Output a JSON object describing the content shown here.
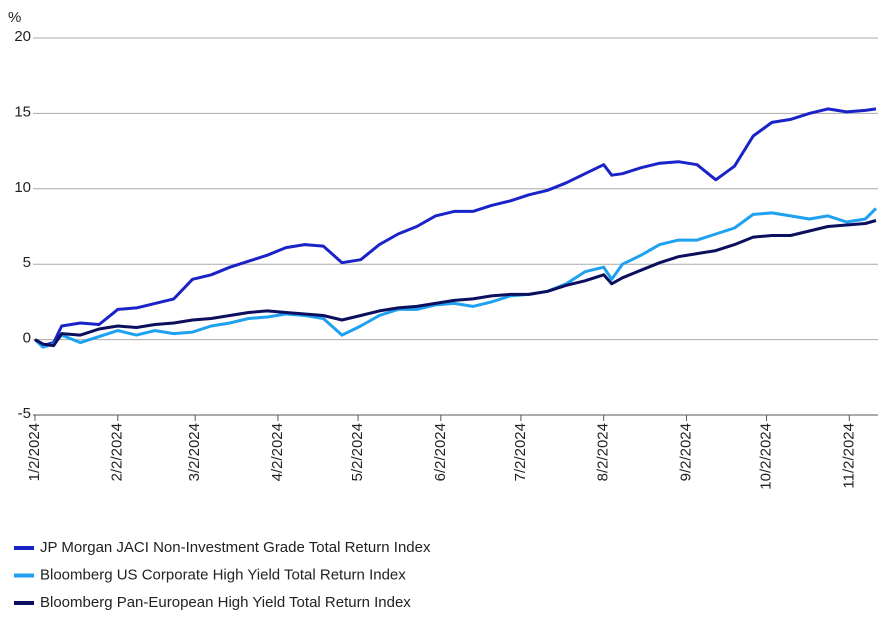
{
  "chart_data": {
    "type": "line",
    "y_label": "%",
    "x": [
      "1/2/2024",
      "1/5/2024",
      "1/9/2024",
      "1/12/2024",
      "1/19/2024",
      "1/26/2024",
      "2/2/2024",
      "2/9/2024",
      "2/16/2024",
      "2/23/2024",
      "3/1/2024",
      "3/8/2024",
      "3/15/2024",
      "3/22/2024",
      "3/29/2024",
      "4/5/2024",
      "4/12/2024",
      "4/19/2024",
      "4/26/2024",
      "5/3/2024",
      "5/10/2024",
      "5/17/2024",
      "5/24/2024",
      "5/31/2024",
      "6/7/2024",
      "6/14/2024",
      "6/21/2024",
      "6/28/2024",
      "7/5/2024",
      "7/12/2024",
      "7/19/2024",
      "7/26/2024",
      "8/2/2024",
      "8/5/2024",
      "8/9/2024",
      "8/16/2024",
      "8/23/2024",
      "8/30/2024",
      "9/6/2024",
      "9/13/2024",
      "9/20/2024",
      "9/27/2024",
      "10/4/2024",
      "10/11/2024",
      "10/18/2024",
      "10/25/2024",
      "11/1/2024",
      "11/8/2024",
      "11/12/2024"
    ],
    "series": [
      {
        "name": "JP Morgan JACI Non-Investment Grade Total Return Index",
        "color": "#1a23c8",
        "values": [
          0,
          -0.4,
          -0.2,
          0.9,
          1.1,
          1.0,
          2.0,
          2.1,
          2.4,
          2.7,
          4.0,
          4.3,
          4.8,
          5.2,
          5.6,
          6.1,
          6.3,
          6.2,
          5.1,
          5.3,
          6.3,
          7.0,
          7.5,
          8.2,
          8.5,
          8.5,
          8.9,
          9.2,
          9.6,
          9.9,
          10.4,
          11.0,
          11.6,
          10.9,
          11.0,
          11.4,
          11.7,
          11.8,
          11.6,
          10.6,
          11.5,
          13.5,
          14.4,
          14.6,
          15.0,
          15.3,
          15.1,
          15.2,
          15.3
        ]
      },
      {
        "name": "Bloomberg US Corporate High Yield Total Return Index",
        "color": "#1ea1f0",
        "values": [
          0,
          -0.5,
          -0.3,
          0.3,
          -0.2,
          0.2,
          0.6,
          0.3,
          0.6,
          0.4,
          0.5,
          0.9,
          1.1,
          1.4,
          1.5,
          1.7,
          1.6,
          1.4,
          0.3,
          0.9,
          1.6,
          2.0,
          2.0,
          2.3,
          2.4,
          2.2,
          2.5,
          2.9,
          3.0,
          3.2,
          3.7,
          4.5,
          4.8,
          4.0,
          5.0,
          5.6,
          6.3,
          6.6,
          6.6,
          7.0,
          7.4,
          8.3,
          8.4,
          8.2,
          8.0,
          8.2,
          7.8,
          8.0,
          8.7
        ]
      },
      {
        "name": "Bloomberg Pan-European High Yield Total Return Index",
        "color": "#0c0f5e",
        "values": [
          0,
          -0.3,
          -0.4,
          0.4,
          0.3,
          0.7,
          0.9,
          0.8,
          1.0,
          1.1,
          1.3,
          1.4,
          1.6,
          1.8,
          1.9,
          1.8,
          1.7,
          1.6,
          1.3,
          1.6,
          1.9,
          2.1,
          2.2,
          2.4,
          2.6,
          2.7,
          2.9,
          3.0,
          3.0,
          3.2,
          3.6,
          3.9,
          4.3,
          3.7,
          4.1,
          4.6,
          5.1,
          5.5,
          5.7,
          5.9,
          6.3,
          6.8,
          6.9,
          6.9,
          7.2,
          7.5,
          7.6,
          7.7,
          7.9
        ]
      }
    ],
    "xlim": [
      "1/2/2024",
      "11/12/2024"
    ],
    "xticks": [
      "1/2/2024",
      "2/2/2024",
      "3/2/2024",
      "4/2/2024",
      "5/2/2024",
      "6/2/2024",
      "7/2/2024",
      "8/2/2024",
      "9/2/2024",
      "10/2/2024",
      "11/2/2024"
    ],
    "ylim": [
      -5,
      20
    ],
    "yticks": [
      20,
      15,
      10,
      5,
      0,
      -5
    ],
    "grid": true
  }
}
